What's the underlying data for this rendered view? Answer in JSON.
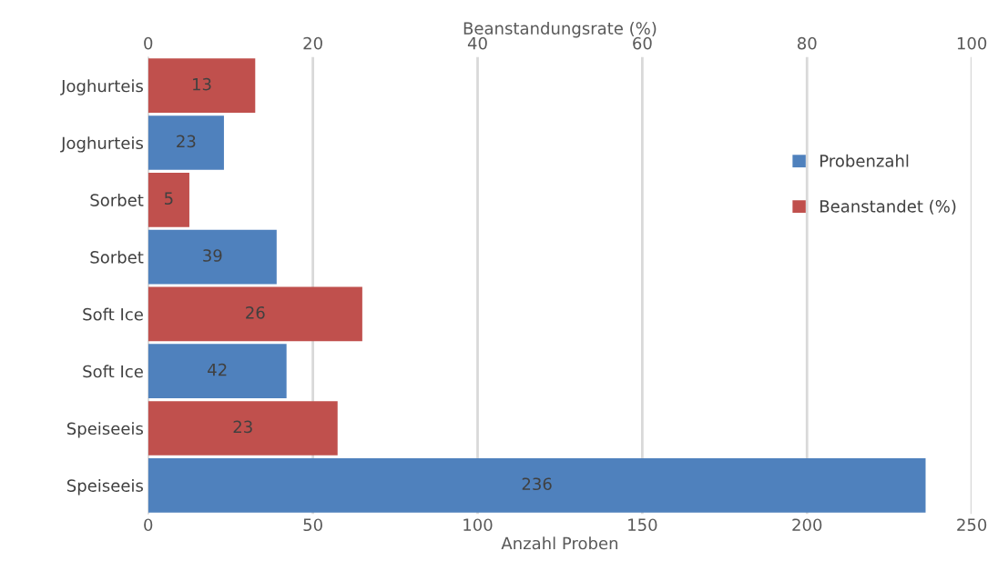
{
  "chart_data": {
    "type": "bar",
    "orientation": "horizontal",
    "xlabel": "Anzahl Proben",
    "x2label": "Beanstandungsrate (%)",
    "categories": [
      "Joghurteis",
      "Joghurteis",
      "Sorbet",
      "Sorbet",
      "Soft Ice",
      "Soft Ice",
      "Speiseeis",
      "Speiseeis"
    ],
    "series": [
      {
        "name": "Probenzahl",
        "color": "#4f81bd",
        "values": [
          null,
          23,
          null,
          39,
          null,
          42,
          null,
          236
        ]
      },
      {
        "name": "Beanstandet (%)",
        "color": "#c0504d",
        "axis": "x2",
        "values": [
          13,
          null,
          5,
          null,
          26,
          null,
          23,
          null
        ]
      }
    ],
    "xlim": [
      0,
      250
    ],
    "xticks": [
      0,
      50,
      100,
      150,
      200,
      250
    ],
    "x2lim": [
      0,
      100
    ],
    "x2ticks": [
      0,
      20,
      40,
      60,
      80,
      100
    ],
    "grid": "x",
    "legend": "right",
    "data_labels": true
  }
}
